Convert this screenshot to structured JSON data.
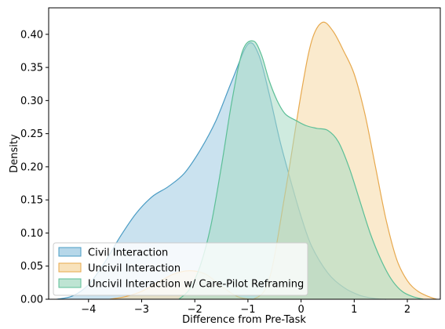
{
  "chart_data": {
    "type": "area",
    "subtype": "kde-density",
    "title": "",
    "xlabel": "Difference from Pre-Task",
    "ylabel": "Density",
    "xlim": [
      -4.75,
      2.62
    ],
    "ylim": [
      0,
      0.44
    ],
    "xticks": [
      -4,
      -3,
      -2,
      -1,
      0,
      1,
      2
    ],
    "xtick_labels": [
      "−4",
      "−3",
      "−2",
      "−1",
      "0",
      "1",
      "2"
    ],
    "yticks": [
      0,
      0.05,
      0.1,
      0.15,
      0.2,
      0.25,
      0.3,
      0.35,
      0.4
    ],
    "ytick_labels": [
      "0.00",
      "0.05",
      "0.10",
      "0.15",
      "0.20",
      "0.25",
      "0.30",
      "0.35",
      "0.40"
    ],
    "legend_position": "lower-left",
    "grid": false,
    "series": [
      {
        "name": "Civil Interaction",
        "fill": "#9ecae1",
        "stroke": "#4b9cc4",
        "x": [
          -4.6,
          -4.3,
          -4.0,
          -3.7,
          -3.4,
          -3.1,
          -2.8,
          -2.5,
          -2.2,
          -1.9,
          -1.6,
          -1.3,
          -1.0,
          -0.8,
          -0.6,
          -0.4,
          -0.2,
          0.0,
          0.2,
          0.5,
          0.8,
          1.1,
          1.4,
          1.6
        ],
        "y": [
          0.0,
          0.005,
          0.022,
          0.055,
          0.095,
          0.13,
          0.155,
          0.17,
          0.19,
          0.225,
          0.27,
          0.33,
          0.385,
          0.37,
          0.31,
          0.24,
          0.18,
          0.125,
          0.08,
          0.04,
          0.018,
          0.006,
          0.001,
          0.0
        ]
      },
      {
        "name": "Uncivil Interaction",
        "fill": "#f6d8a4",
        "stroke": "#e7a94e",
        "x": [
          -3.6,
          -3.3,
          -3.0,
          -2.7,
          -2.4,
          -2.1,
          -1.8,
          -1.5,
          -1.2,
          -0.9,
          -0.6,
          -0.3,
          0.0,
          0.2,
          0.4,
          0.6,
          0.8,
          1.0,
          1.2,
          1.4,
          1.6,
          1.8,
          2.0,
          2.2,
          2.4,
          2.55
        ],
        "y": [
          0.0,
          0.004,
          0.012,
          0.025,
          0.038,
          0.043,
          0.038,
          0.02,
          0.004,
          0.0,
          0.03,
          0.16,
          0.31,
          0.39,
          0.418,
          0.405,
          0.375,
          0.34,
          0.28,
          0.2,
          0.12,
          0.06,
          0.028,
          0.012,
          0.004,
          0.0
        ]
      },
      {
        "name": "Uncivil Interaction w/ Care-Pilot Reframing",
        "fill": "#a8dbc4",
        "stroke": "#5cbf97",
        "x": [
          -2.3,
          -2.1,
          -1.9,
          -1.7,
          -1.5,
          -1.3,
          -1.1,
          -0.9,
          -0.75,
          -0.6,
          -0.45,
          -0.3,
          -0.1,
          0.1,
          0.3,
          0.5,
          0.7,
          0.9,
          1.1,
          1.3,
          1.5,
          1.7,
          1.9,
          2.1,
          2.3
        ],
        "y": [
          0.0,
          0.015,
          0.05,
          0.11,
          0.2,
          0.3,
          0.375,
          0.39,
          0.37,
          0.33,
          0.3,
          0.28,
          0.27,
          0.262,
          0.258,
          0.255,
          0.238,
          0.2,
          0.15,
          0.1,
          0.06,
          0.03,
          0.012,
          0.004,
          0.0
        ]
      }
    ]
  }
}
